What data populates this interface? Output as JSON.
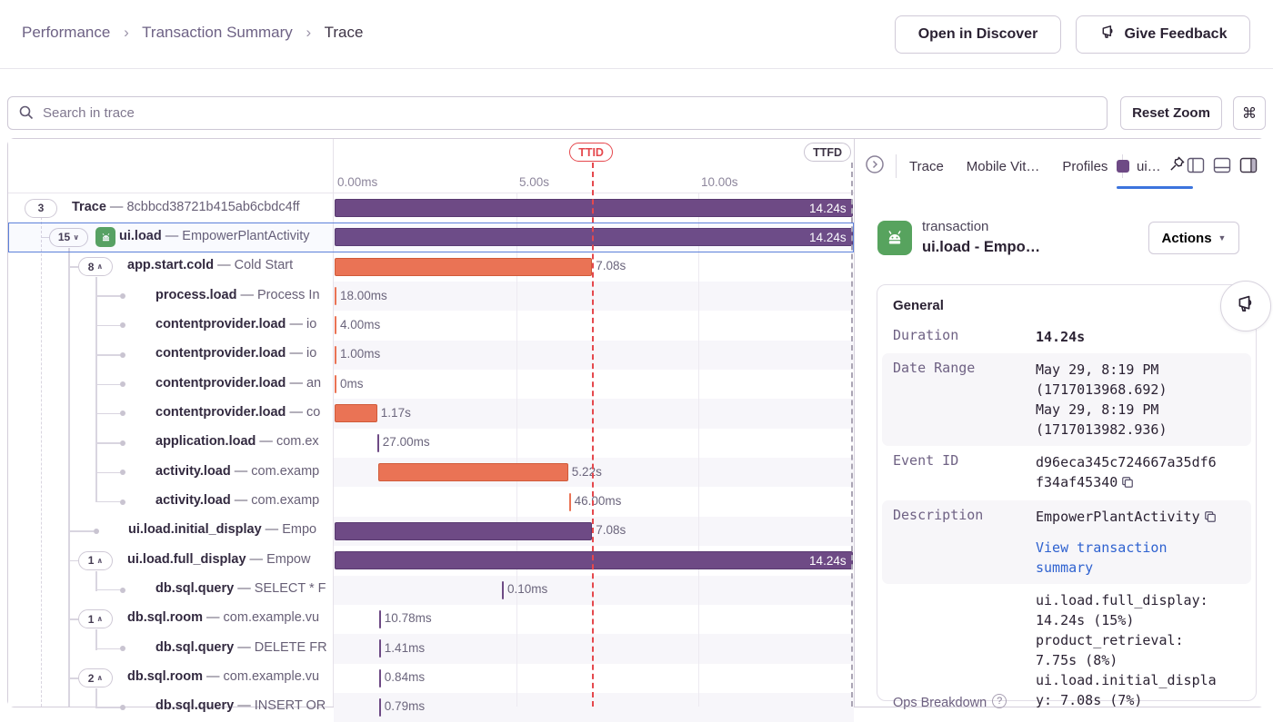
{
  "breadcrumb": {
    "items": [
      "Performance",
      "Transaction Summary",
      "Trace"
    ]
  },
  "header": {
    "open_in_discover": "Open in Discover",
    "give_feedback": "Give Feedback"
  },
  "toolbar": {
    "search_placeholder": "Search in trace",
    "reset_zoom": "Reset Zoom",
    "shortcut_key": "⌘"
  },
  "colors": {
    "span_purple": "#6e4a85",
    "span_orange": "#ea7355",
    "selected_blue": "#5c80da",
    "ttid_red": "#e5484d",
    "link_blue": "#2f62d0",
    "android_green": "#57a35e"
  },
  "waterfall": {
    "markers": [
      {
        "label": "TTID",
        "s": 7.08,
        "style": "red"
      },
      {
        "label": "TTFD",
        "s": 14.2,
        "style": "grey"
      }
    ],
    "axis_ticks": [
      {
        "label": "0.00ms",
        "s": 0
      },
      {
        "label": "5.00s",
        "s": 5
      },
      {
        "label": "10.00s",
        "s": 10
      }
    ]
  },
  "rows": [
    {
      "kind": "badge",
      "depth": 0,
      "badge": "3",
      "chevron": null,
      "icon": null,
      "op": "Trace",
      "desc": "8cbbcd38721b415ab6cbdc4ff",
      "selected": false,
      "bar": {
        "color": "purple",
        "start_s": 0,
        "dur_s": 14.24,
        "label": "14.24s",
        "label_inside": true
      }
    },
    {
      "kind": "badge",
      "depth": 1,
      "badge": "15",
      "chevron": "down",
      "icon": "android",
      "op": "ui.load",
      "desc": "EmpowerPlantActivity",
      "selected": true,
      "bar": {
        "color": "purple",
        "start_s": 0,
        "dur_s": 14.24,
        "label": "14.24s",
        "label_inside": true
      }
    },
    {
      "kind": "badge",
      "depth": 2,
      "badge": "8",
      "chevron": "up",
      "op": "app.start.cold",
      "desc": "Cold Start",
      "bar": {
        "color": "orange",
        "start_s": 0,
        "dur_s": 7.08,
        "label": "7.08s"
      }
    },
    {
      "kind": "dot",
      "depth": 3,
      "op": "process.load",
      "desc": "Process In",
      "bar": {
        "color": "orange",
        "start_s": 0,
        "dur_s": 0.018,
        "label": "18.00ms"
      }
    },
    {
      "kind": "dot",
      "depth": 3,
      "op": "contentprovider.load",
      "desc": "io",
      "bar": {
        "color": "orange",
        "start_s": 0,
        "dur_s": 0.004,
        "label": "4.00ms"
      }
    },
    {
      "kind": "dot",
      "depth": 3,
      "op": "contentprovider.load",
      "desc": "io",
      "bar": {
        "color": "orange",
        "start_s": 0,
        "dur_s": 0.001,
        "label": "1.00ms"
      }
    },
    {
      "kind": "dot",
      "depth": 3,
      "op": "contentprovider.load",
      "desc": "an",
      "bar": {
        "color": "orange",
        "start_s": 0,
        "dur_s": 0,
        "label": "0ms"
      }
    },
    {
      "kind": "dot",
      "depth": 3,
      "op": "contentprovider.load",
      "desc": "co",
      "bar": {
        "color": "orange",
        "start_s": 0,
        "dur_s": 1.17,
        "label": "1.17s"
      }
    },
    {
      "kind": "dot",
      "depth": 3,
      "op": "application.load",
      "desc": "com.ex",
      "bar": {
        "color": "purple",
        "start_s": 1.17,
        "dur_s": 0.027,
        "label": "27.00ms"
      }
    },
    {
      "kind": "dot",
      "depth": 3,
      "op": "activity.load",
      "desc": "com.examp",
      "bar": {
        "color": "orange",
        "start_s": 1.2,
        "dur_s": 5.22,
        "label": "5.22s"
      }
    },
    {
      "kind": "dot",
      "depth": 3,
      "op": "activity.load",
      "desc": "com.examp",
      "bar": {
        "color": "orange",
        "start_s": 6.44,
        "dur_s": 0.046,
        "label": "46.00ms"
      }
    },
    {
      "kind": "dot",
      "depth": 2,
      "op": "ui.load.initial_display",
      "desc": "Empo",
      "bar": {
        "color": "purple",
        "start_s": 0,
        "dur_s": 7.08,
        "label": "7.08s"
      }
    },
    {
      "kind": "badge",
      "depth": 2,
      "badge": "1",
      "chevron": "up",
      "op": "ui.load.full_display",
      "desc": "Empow",
      "bar": {
        "color": "purple",
        "start_s": 0,
        "dur_s": 14.24,
        "label": "14.24s",
        "label_inside": true
      }
    },
    {
      "kind": "dot",
      "depth": 3,
      "op": "db.sql.query",
      "desc": "SELECT * F",
      "bar": {
        "color": "purple",
        "start_s": 4.6,
        "dur_s": 0.0001,
        "label": "0.10ms"
      }
    },
    {
      "kind": "badge",
      "depth": 2,
      "badge": "1",
      "chevron": "up",
      "op": "db.sql.room",
      "desc": "com.example.vu",
      "bar": {
        "color": "purple",
        "start_s": 1.22,
        "dur_s": 0.0108,
        "label": "10.78ms"
      }
    },
    {
      "kind": "dot",
      "depth": 3,
      "op": "db.sql.query",
      "desc": "DELETE FR",
      "bar": {
        "color": "purple",
        "start_s": 1.22,
        "dur_s": 0.0014,
        "label": "1.41ms"
      }
    },
    {
      "kind": "badge",
      "depth": 2,
      "badge": "2",
      "chevron": "up",
      "op": "db.sql.room",
      "desc": "com.example.vu",
      "bar": {
        "color": "purple",
        "start_s": 1.22,
        "dur_s": 0.0008,
        "label": "0.84ms"
      }
    },
    {
      "kind": "dot",
      "depth": 3,
      "op": "db.sql.query",
      "desc": "INSERT OR ",
      "bar": {
        "color": "purple",
        "start_s": 1.22,
        "dur_s": 0.0008,
        "label": "0.79ms"
      }
    }
  ],
  "panel": {
    "tabs": [
      {
        "label": "Trace",
        "active": false
      },
      {
        "label": "Mobile Vit…",
        "active": false
      },
      {
        "label": "Profiles",
        "active": false
      },
      {
        "label": "ui…",
        "active": true,
        "swatch": "#6e4a85"
      }
    ],
    "transaction": {
      "type_label": "transaction",
      "name": "ui.load - Empo…",
      "actions_label": "Actions"
    },
    "general": {
      "title": "General",
      "rows": [
        {
          "key": "Duration",
          "values": [
            "14.24s"
          ],
          "bold": true
        },
        {
          "key": "Date Range",
          "values": [
            "May 29, 8:19 PM",
            "(1717013968.692)",
            "May 29, 8:19 PM",
            "(1717013982.936)"
          ],
          "shaded": true
        },
        {
          "key": "Event ID",
          "values": [
            "d96eca345c724667a35df6f34af45340"
          ],
          "copy": true
        },
        {
          "key": "Description",
          "values": [
            "EmpowerPlantActivity"
          ],
          "copy": true,
          "link": "View transaction summary",
          "shaded": true
        },
        {
          "key": "Ops Breakdown",
          "help": true,
          "bottom_key": true,
          "values": [
            "ui.load.full_display: 14.24s (15%)",
            "product_retrieval: 7.75s (8%)",
            "ui.load.initial_display: 7.08s (7%)"
          ]
        }
      ]
    }
  }
}
